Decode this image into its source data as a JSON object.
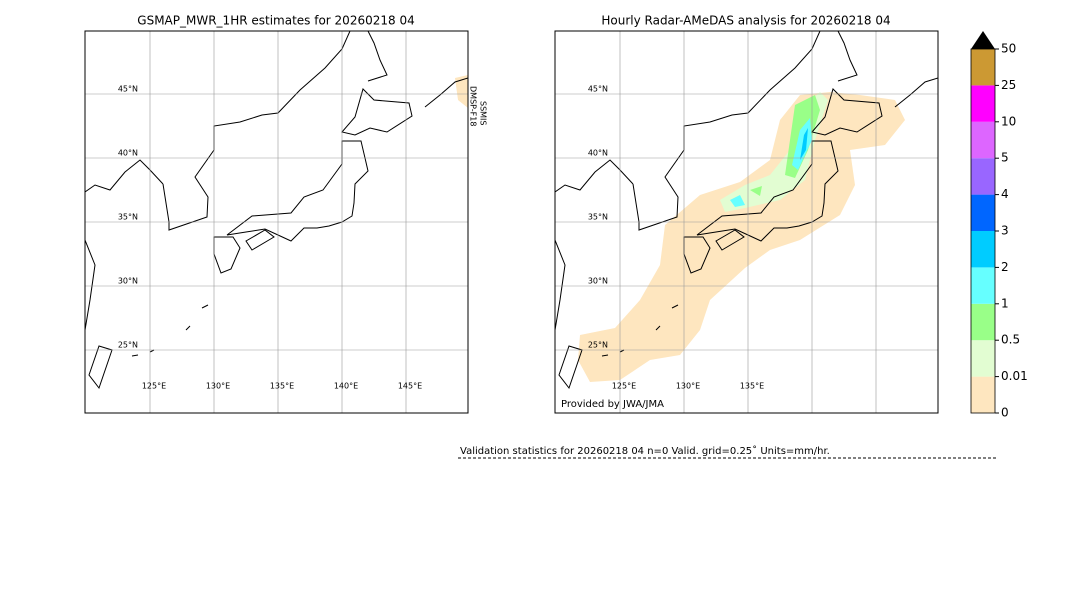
{
  "left_map": {
    "title": "GSMAP_MWR_1HR estimates for 20260218 04",
    "satellite": [
      "DMSP-F18",
      "SSMIS"
    ]
  },
  "right_map": {
    "title": "Hourly Radar-AMeDAS analysis for 20260218 04",
    "credit": "Provided by JWA/JMA"
  },
  "lat_labels": [
    {
      "value": 45,
      "label": "45°N"
    },
    {
      "value": 40,
      "label": "40°N"
    },
    {
      "value": 35,
      "label": "35°N"
    },
    {
      "value": 30,
      "label": "30°N"
    },
    {
      "value": 25,
      "label": "25°N"
    }
  ],
  "lon_labels_left": [
    {
      "value": 125,
      "label": "125°E"
    },
    {
      "value": 130,
      "label": "130°E"
    },
    {
      "value": 135,
      "label": "135°E"
    },
    {
      "value": 140,
      "label": "140°E"
    },
    {
      "value": 145,
      "label": "145°E"
    }
  ],
  "lon_labels_right": [
    {
      "value": 125,
      "label": "125°E"
    },
    {
      "value": 130,
      "label": "130°E"
    },
    {
      "value": 135,
      "label": "135°E"
    }
  ],
  "colorbar": {
    "levels": [
      0,
      0.01,
      0.5,
      1,
      2,
      3,
      4,
      5,
      10,
      25,
      50
    ],
    "colors": [
      "#fee6bf",
      "#e2fdd2",
      "#99ff88",
      "#66ffff",
      "#00ccff",
      "#0066ff",
      "#9966ff",
      "#dd66ff",
      "#ff00ff",
      "#cc9933"
    ],
    "extend_color": "#000000"
  },
  "validation": "Validation statistics for 20260218 04  n=0 Valid. grid=0.25˚ Units=mm/hr."
}
